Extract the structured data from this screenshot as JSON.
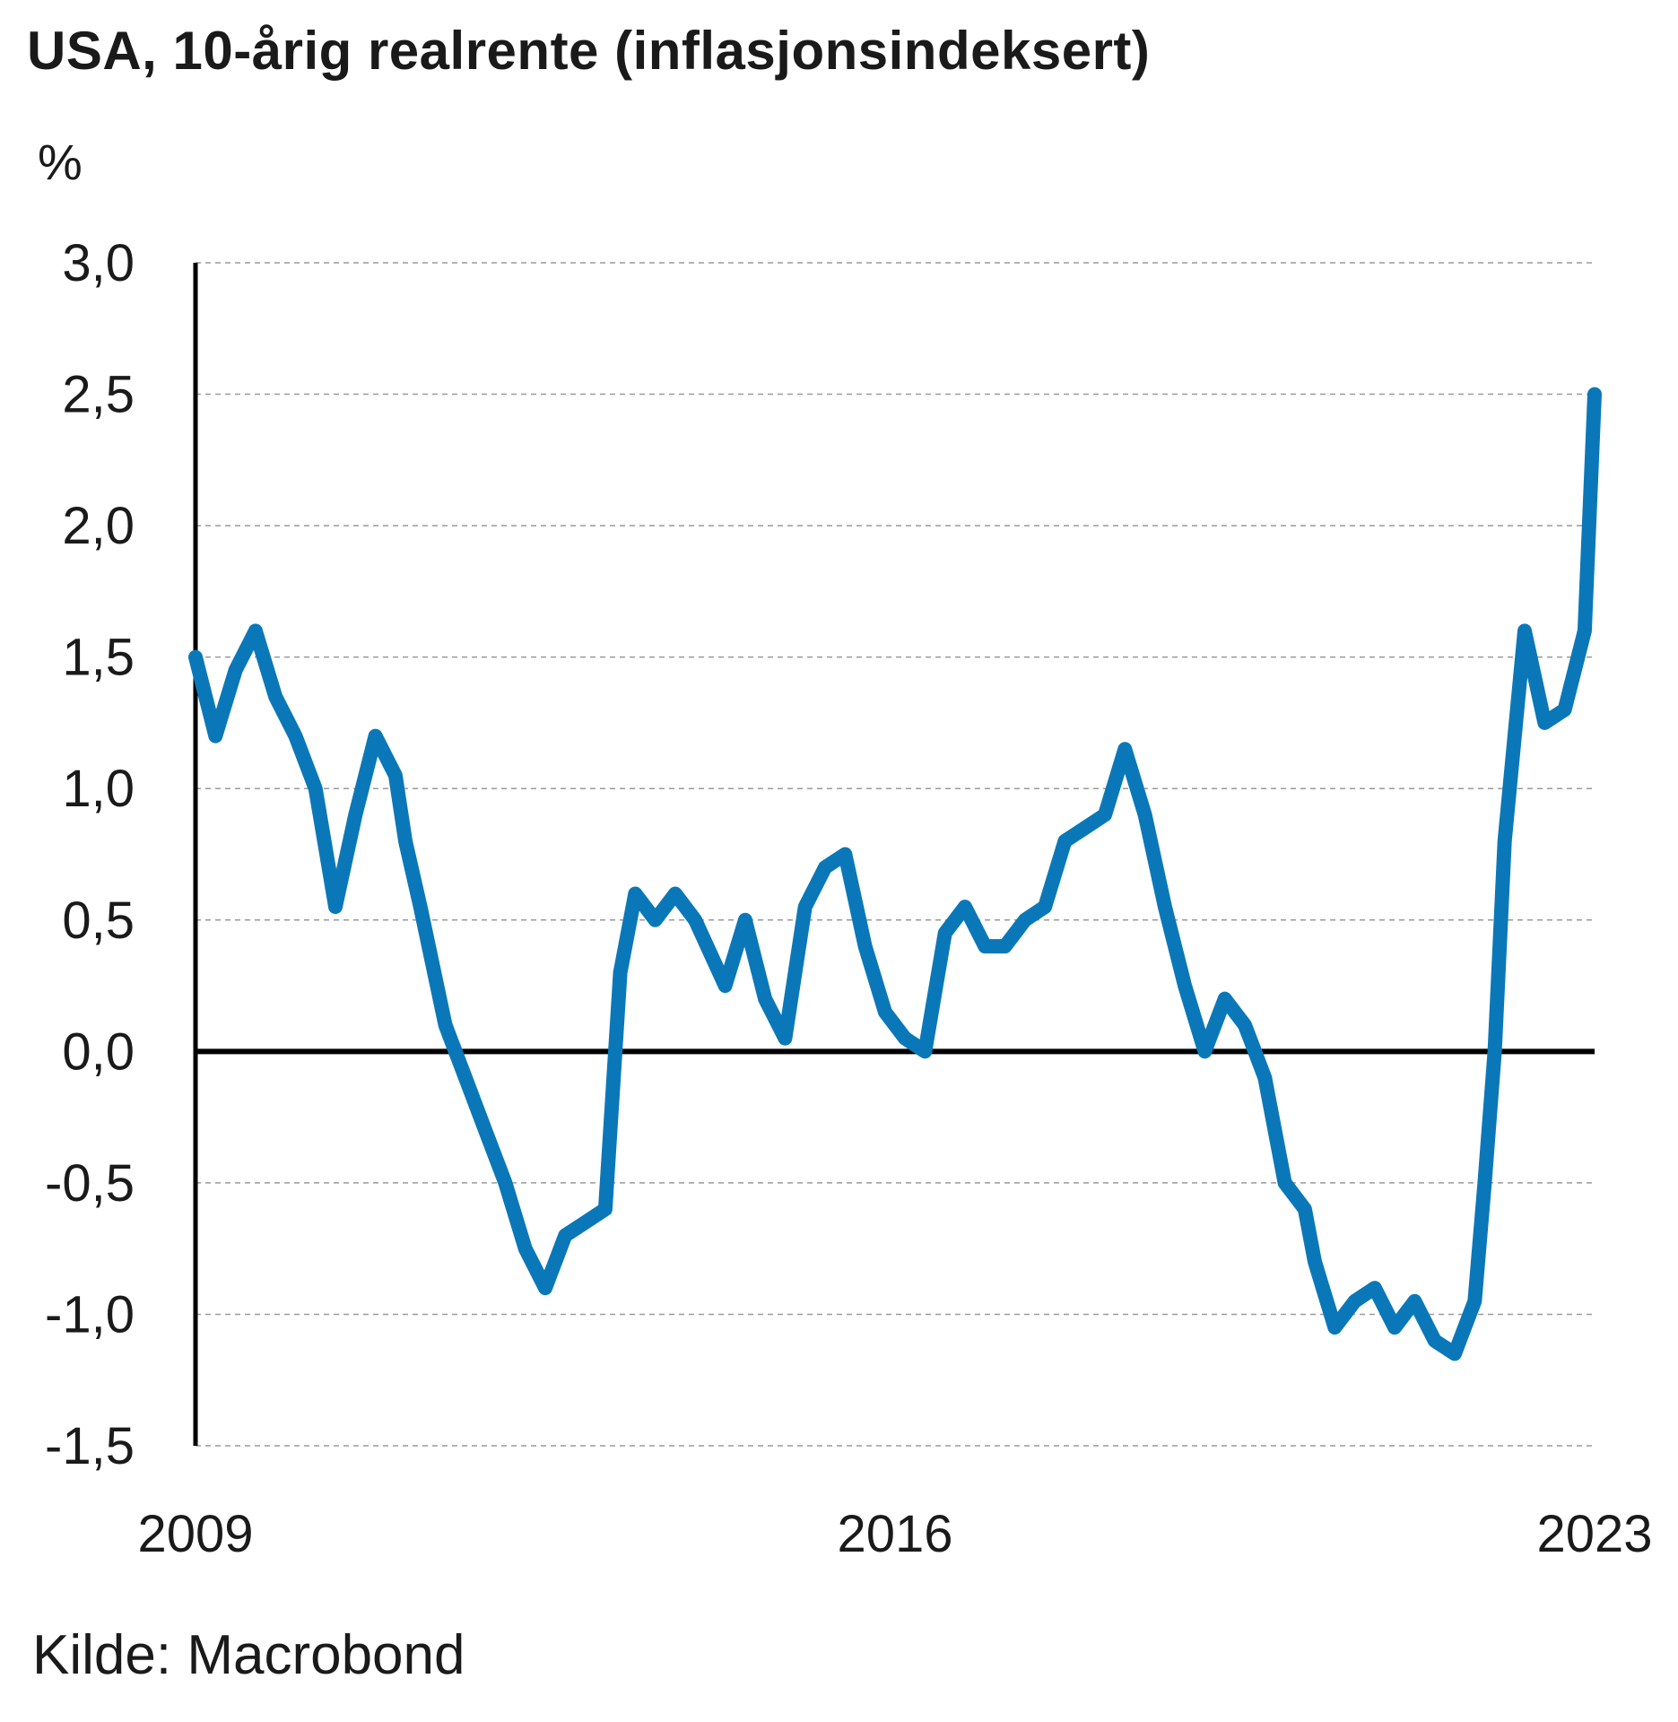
{
  "chart_data": {
    "type": "line",
    "title": "USA, 10-årig realrente (inflasjonsindeksert)",
    "ylabel": "%",
    "source": "Kilde: Macrobond",
    "ylim": [
      -1.5,
      3.0
    ],
    "xlim": [
      2009.0,
      2023.0
    ],
    "grid": true,
    "y_ticks": [
      "3,0",
      "2,5",
      "2,0",
      "1,5",
      "1,0",
      "0,5",
      "0,0",
      "-0,5",
      "-1,0",
      "-1,5"
    ],
    "y_tick_values": [
      3.0,
      2.5,
      2.0,
      1.5,
      1.0,
      0.5,
      0.0,
      -0.5,
      -1.0,
      -1.5
    ],
    "x_ticks": [
      "2009",
      "2016",
      "2023"
    ],
    "x_tick_values": [
      2009.0,
      2016.0,
      2023.0
    ],
    "line_color": "#0a78b8",
    "series": [
      {
        "name": "",
        "x": [
          2009.0,
          2009.2,
          2009.4,
          2009.6,
          2009.8,
          2010.0,
          2010.2,
          2010.4,
          2010.6,
          2010.8,
          2011.0,
          2011.1,
          2011.25,
          2011.5,
          2011.7,
          2011.9,
          2012.1,
          2012.3,
          2012.5,
          2012.7,
          2012.9,
          2013.1,
          2013.25,
          2013.4,
          2013.6,
          2013.8,
          2014.0,
          2014.3,
          2014.5,
          2014.7,
          2014.9,
          2015.1,
          2015.3,
          2015.5,
          2015.7,
          2015.9,
          2016.1,
          2016.3,
          2016.5,
          2016.7,
          2016.9,
          2017.1,
          2017.3,
          2017.5,
          2017.7,
          2017.9,
          2018.1,
          2018.3,
          2018.5,
          2018.7,
          2018.9,
          2019.1,
          2019.3,
          2019.5,
          2019.7,
          2019.9,
          2020.1,
          2020.2,
          2020.4,
          2020.6,
          2020.8,
          2021.0,
          2021.2,
          2021.4,
          2021.6,
          2021.8,
          2021.9,
          2022.0,
          2022.1,
          2022.3,
          2022.5,
          2022.7,
          2022.9,
          2023.0
        ],
        "values": [
          1.5,
          1.2,
          1.45,
          1.6,
          1.35,
          1.2,
          1.0,
          0.55,
          0.9,
          1.2,
          1.05,
          0.8,
          0.55,
          0.1,
          -0.1,
          -0.3,
          -0.5,
          -0.75,
          -0.9,
          -0.7,
          -0.65,
          -0.6,
          0.3,
          0.6,
          0.5,
          0.6,
          0.5,
          0.25,
          0.5,
          0.2,
          0.05,
          0.55,
          0.7,
          0.75,
          0.4,
          0.15,
          0.05,
          0.0,
          0.45,
          0.55,
          0.4,
          0.4,
          0.5,
          0.55,
          0.8,
          0.85,
          0.9,
          1.15,
          0.9,
          0.55,
          0.25,
          0.0,
          0.2,
          0.1,
          -0.1,
          -0.5,
          -0.6,
          -0.8,
          -1.05,
          -0.95,
          -0.9,
          -1.05,
          -0.95,
          -1.1,
          -1.15,
          -0.95,
          -0.5,
          0.0,
          0.8,
          1.6,
          1.25,
          1.3,
          1.6,
          2.5
        ]
      }
    ]
  }
}
